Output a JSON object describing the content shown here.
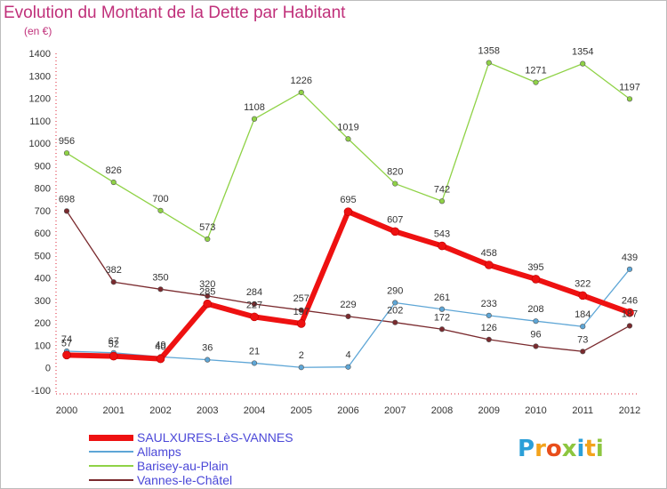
{
  "title": "Evolution du Montant de la Dette par Habitant",
  "unit": "(en €)",
  "logo": {
    "letters": [
      "P",
      "r",
      "o",
      "x",
      "i",
      "t",
      "i"
    ],
    "colors": [
      "#2b9fd8",
      "#f3a31c",
      "#e84e1b",
      "#8dc63f",
      "#2b9fd8",
      "#f3a31c",
      "#8dc63f"
    ]
  },
  "chart_data": {
    "type": "line",
    "x": [
      "2000",
      "2001",
      "2002",
      "2003",
      "2004",
      "2005",
      "2006",
      "2007",
      "2008",
      "2009",
      "2010",
      "2011",
      "2012"
    ],
    "ylim": [
      -100,
      1400
    ],
    "yticks": [
      -100,
      0,
      100,
      200,
      300,
      400,
      500,
      600,
      700,
      800,
      900,
      1000,
      1100,
      1200,
      1300,
      1400
    ],
    "grid": false,
    "legend_position": "bottom-left",
    "series": [
      {
        "name": "Vannes-le-Châtel",
        "color": "#7a2a2e",
        "width": 1.3,
        "marker": 2.8,
        "values": [
          698,
          382,
          350,
          320,
          284,
          257,
          229,
          202,
          172,
          126,
          96,
          73,
          187
        ],
        "labels": [
          "698",
          "382",
          "350",
          "320",
          "284",
          "257",
          "229",
          "202",
          "172",
          "126",
          "96",
          "73",
          "187"
        ]
      },
      {
        "name": "Barisey-au-Plain",
        "color": "#8fd246",
        "width": 1.3,
        "marker": 2.8,
        "values": [
          956,
          826,
          700,
          573,
          1108,
          1226,
          1019,
          820,
          742,
          1358,
          1271,
          1354,
          1197
        ],
        "labels": [
          "956",
          "826",
          "700",
          "573",
          "1108",
          "1226",
          "1019",
          "820",
          "742",
          "1358",
          "1271",
          "1354",
          "1197"
        ]
      },
      {
        "name": "Allamps",
        "color": "#5ea6d6",
        "width": 1.3,
        "marker": 2.8,
        "values": [
          74,
          67,
          49,
          36,
          21,
          2,
          4,
          290,
          261,
          233,
          208,
          184,
          439
        ],
        "labels": [
          "74",
          "67",
          "49",
          "36",
          "21",
          "2",
          "4",
          "290",
          "261",
          "233",
          "208",
          "184",
          "439"
        ]
      },
      {
        "name": "SAULXURES-LèS-VANNES",
        "color": "#ee1111",
        "width": 6,
        "marker": 4.5,
        "values": [
          57,
          52,
          40,
          285,
          227,
          197,
          695,
          607,
          543,
          458,
          395,
          322,
          246
        ],
        "labels": [
          "57",
          "52",
          "40",
          "285",
          "227",
          "197",
          "695",
          "607",
          "543",
          "458",
          "395",
          "322",
          "246"
        ]
      }
    ],
    "legend": [
      "SAULXURES-LèS-VANNES",
      "Allamps",
      "Barisey-au-Plain",
      "Vannes-le-Châtel"
    ]
  }
}
